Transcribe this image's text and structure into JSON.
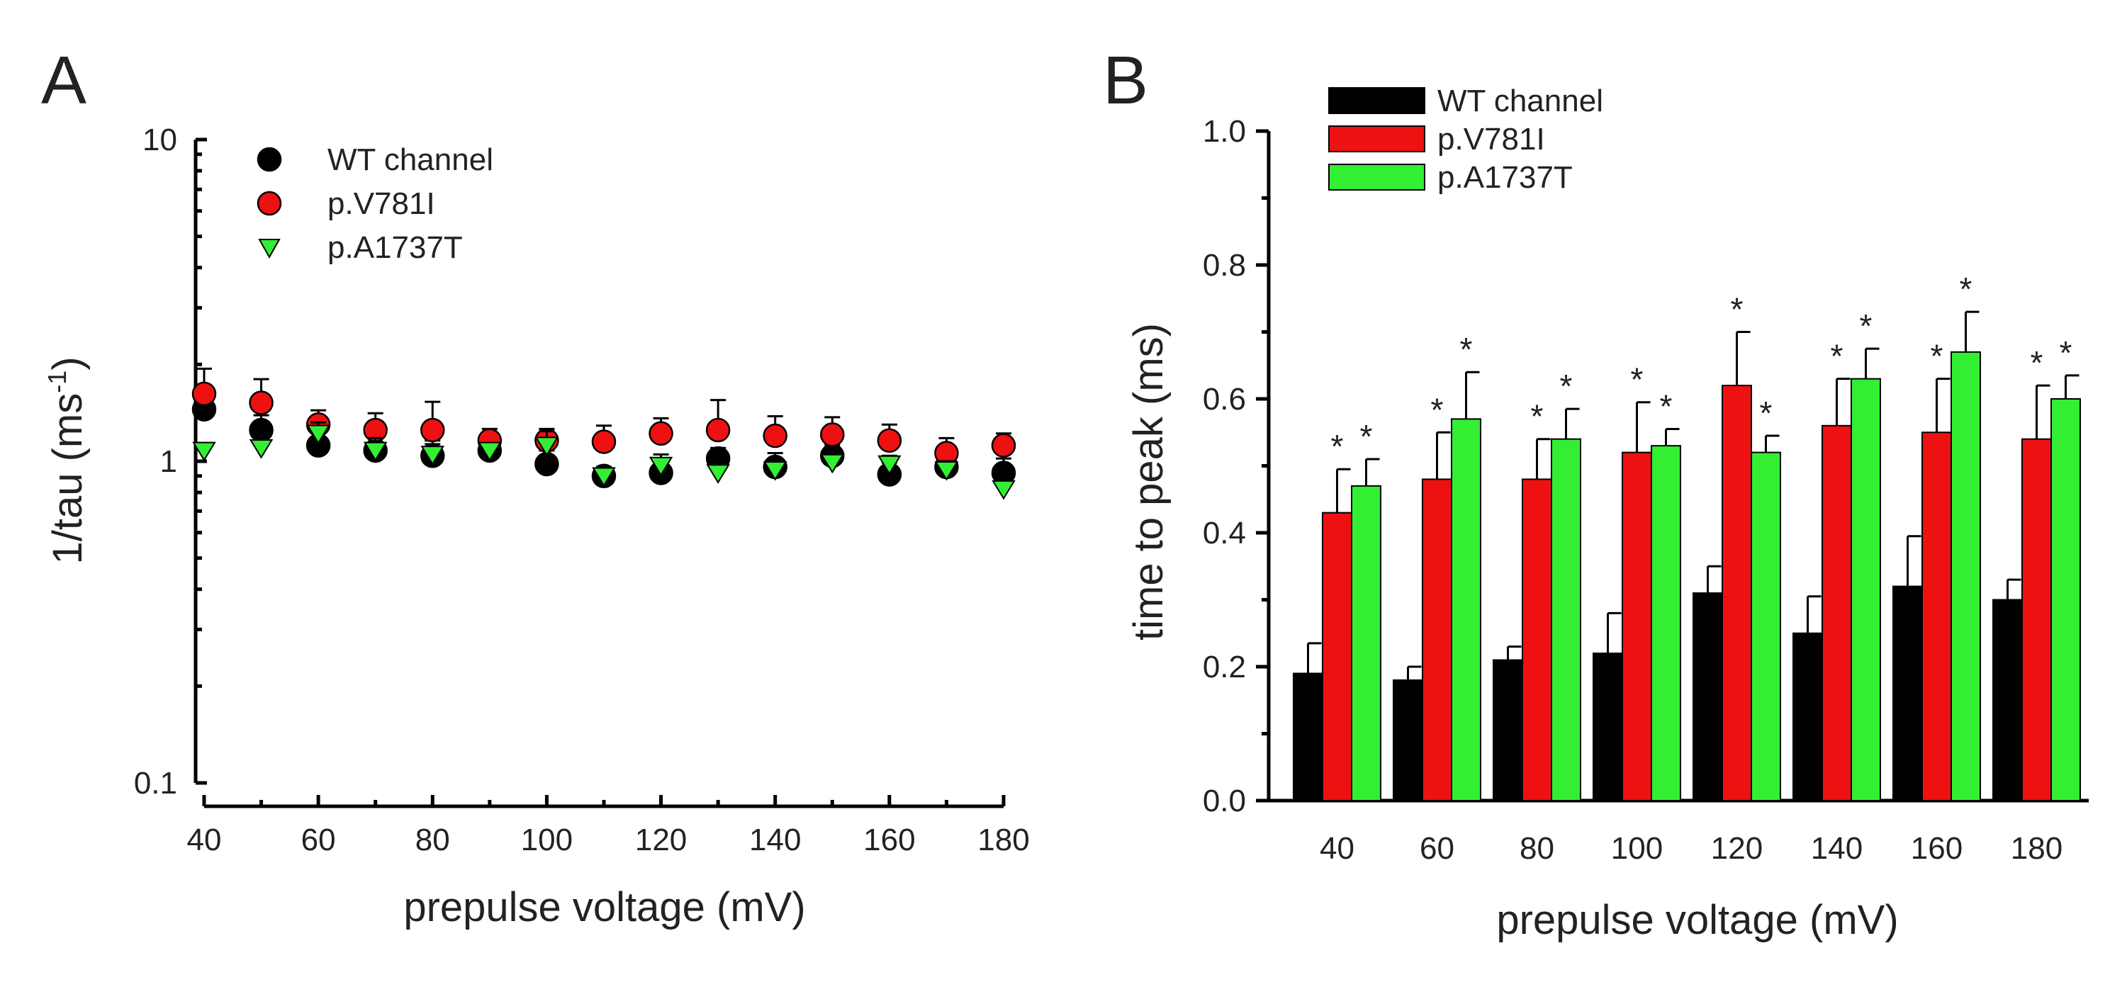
{
  "chart_data": [
    {
      "type": "scatter",
      "panel": "A",
      "title": "",
      "xlabel": "prepulse voltage (mV)",
      "ylabel_main": "1/tau (ms",
      "ylabel_sup": "-1",
      "ylabel_tail": ")",
      "yscale": "log",
      "xlim": [
        40,
        180
      ],
      "ylim": [
        0.1,
        10
      ],
      "x_ticks": [
        40,
        60,
        80,
        100,
        120,
        140,
        160,
        180
      ],
      "x_tick_labels": [
        "40",
        "60",
        "80",
        "100",
        "120",
        "140",
        "160",
        "180"
      ],
      "y_ticks": [
        0.1,
        1,
        10
      ],
      "y_tick_labels": [
        "0.1",
        "1",
        "10"
      ],
      "x": [
        40,
        50,
        60,
        70,
        80,
        90,
        100,
        110,
        120,
        130,
        140,
        150,
        160,
        170,
        180
      ],
      "legend_position": "top-left",
      "series": [
        {
          "name": "WT channel",
          "color": "#000000",
          "marker": "circle",
          "values": [
            1.45,
            1.25,
            1.12,
            1.08,
            1.04,
            1.08,
            0.98,
            0.9,
            0.92,
            1.02,
            0.96,
            1.04,
            0.91,
            0.96,
            0.92
          ],
          "errors": [
            0.16,
            0.14,
            0.16,
            0.14,
            0.12,
            0.08,
            0.1,
            0.06,
            0.06,
            0.08,
            0.1,
            0.08,
            0.08,
            0.08,
            0.1
          ]
        },
        {
          "name": "p.V781I",
          "color": "#ee1111",
          "marker": "circle",
          "values": [
            1.62,
            1.52,
            1.3,
            1.25,
            1.25,
            1.16,
            1.16,
            1.15,
            1.22,
            1.25,
            1.2,
            1.21,
            1.16,
            1.06,
            1.12
          ],
          "errors": [
            0.32,
            0.28,
            0.14,
            0.16,
            0.28,
            0.1,
            0.1,
            0.14,
            0.14,
            0.3,
            0.18,
            0.16,
            0.14,
            0.12,
            0.1
          ]
        },
        {
          "name": "p.A1737T",
          "color": "#33ee33",
          "marker": "triangle-down",
          "values": [
            1.08,
            1.1,
            1.22,
            1.08,
            1.05,
            1.08,
            1.12,
            0.9,
            0.97,
            0.92,
            0.94,
            0.99,
            0.98,
            0.94,
            0.82
          ],
          "errors": [
            0.06,
            0.12,
            0.1,
            0.1,
            0.08,
            0.06,
            0.12,
            0.06,
            0.08,
            0.06,
            0.06,
            0.06,
            0.06,
            0.06,
            0.08
          ]
        }
      ]
    },
    {
      "type": "bar",
      "panel": "B",
      "title": "",
      "xlabel": "prepulse voltage (mV)",
      "ylabel": "time to peak (ms)",
      "ylim": [
        0,
        1.0
      ],
      "y_ticks": [
        0.0,
        0.2,
        0.4,
        0.6,
        0.8,
        1.0
      ],
      "y_tick_labels": [
        "0.0",
        "0.2",
        "0.4",
        "0.6",
        "0.8",
        "1.0"
      ],
      "categories": [
        "40",
        "60",
        "80",
        "100",
        "120",
        "140",
        "160",
        "180"
      ],
      "legend_position": "top-left",
      "significance_marker": "*",
      "series": [
        {
          "name": "WT channel",
          "color": "#000000",
          "values": [
            0.19,
            0.18,
            0.21,
            0.22,
            0.31,
            0.25,
            0.32,
            0.3
          ],
          "errors": [
            0.045,
            0.02,
            0.02,
            0.06,
            0.04,
            0.055,
            0.075,
            0.03
          ],
          "significant": [
            false,
            false,
            false,
            false,
            false,
            false,
            false,
            false
          ]
        },
        {
          "name": "p.V781I",
          "color": "#ee1111",
          "values": [
            0.43,
            0.48,
            0.48,
            0.52,
            0.62,
            0.56,
            0.55,
            0.54
          ],
          "errors": [
            0.065,
            0.07,
            0.06,
            0.075,
            0.08,
            0.07,
            0.08,
            0.08
          ],
          "significant": [
            true,
            true,
            true,
            true,
            true,
            true,
            true,
            true
          ]
        },
        {
          "name": "p.A1737T",
          "color": "#33ee33",
          "values": [
            0.47,
            0.57,
            0.54,
            0.53,
            0.52,
            0.63,
            0.67,
            0.6
          ],
          "errors": [
            0.04,
            0.07,
            0.045,
            0.025,
            0.025,
            0.045,
            0.06,
            0.035
          ],
          "significant": [
            true,
            true,
            true,
            true,
            true,
            true,
            true,
            true
          ]
        }
      ]
    }
  ]
}
